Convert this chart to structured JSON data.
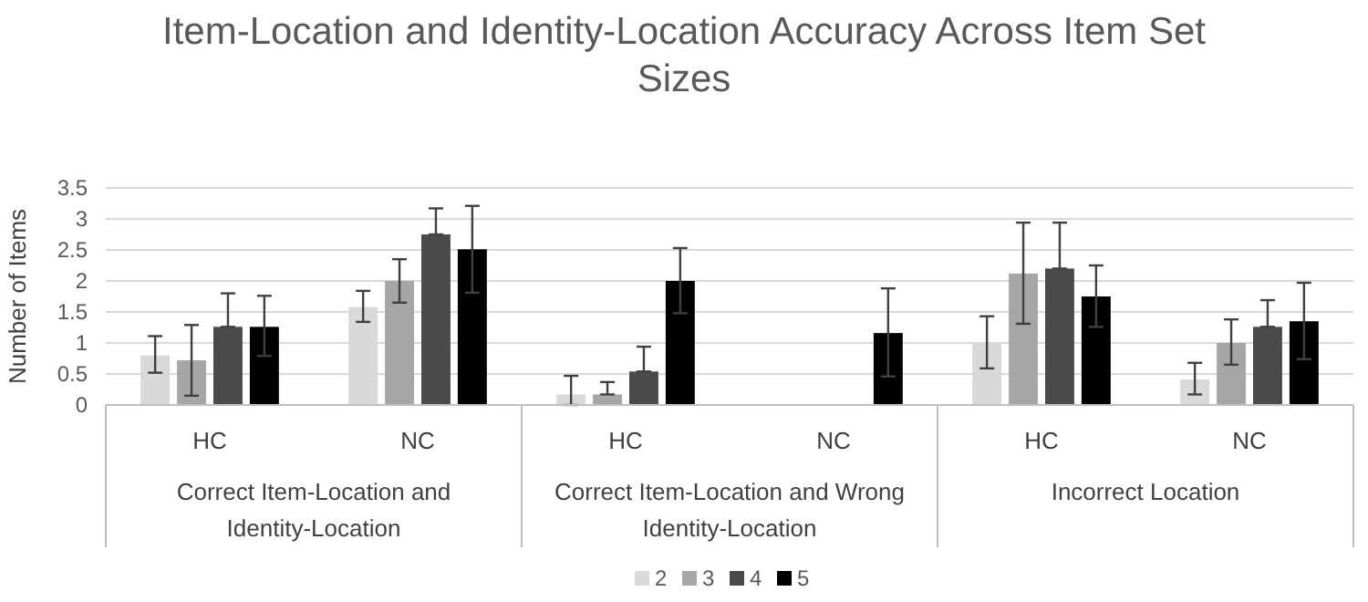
{
  "chart_data": {
    "type": "bar",
    "title": "Item-Location and Identity-Location Accuracy Across Item Set Sizes",
    "ylabel": "Number of Items",
    "categories": [
      "HC",
      "NC",
      "HC",
      "NC",
      "HC",
      "NC"
    ],
    "annotations": [
      "Correct Item-Location and Identity-Location",
      "Correct Item-Location and Wrong Identity-Location",
      "Incorrect Location"
    ],
    "series": [
      {
        "name": "2",
        "color": "#d9d9d9",
        "values": [
          0.8,
          1.58,
          0.17,
          0,
          1.0,
          0.41
        ],
        "errors": [
          [
            0.52,
            1.11
          ],
          [
            1.34,
            1.84
          ],
          [
            0,
            0.47
          ],
          null,
          [
            0.59,
            1.43
          ],
          [
            0.17,
            0.68
          ]
        ]
      },
      {
        "name": "3",
        "color": "#a6a6a6",
        "values": [
          0.72,
          2.0,
          0.17,
          0,
          2.12,
          1.0
        ],
        "errors": [
          [
            0.15,
            1.29
          ],
          [
            1.65,
            2.35
          ],
          [
            0.17,
            0.37
          ],
          null,
          [
            1.31,
            2.94
          ],
          [
            0.65,
            1.38
          ]
        ]
      },
      {
        "name": "4",
        "color": "#4a4a4a",
        "values": [
          1.26,
          2.75,
          0.54,
          0,
          2.2,
          1.26
        ],
        "errors": [
          [
            1.26,
            1.8
          ],
          [
            2.75,
            3.17
          ],
          [
            0.54,
            0.94
          ],
          null,
          [
            2.2,
            2.94
          ],
          [
            1.26,
            1.69
          ]
        ]
      },
      {
        "name": "5",
        "color": "#000000",
        "values": [
          1.26,
          2.51,
          2.0,
          1.16,
          1.75,
          1.35
        ],
        "errors": [
          [
            0.79,
            1.76
          ],
          [
            1.81,
            3.21
          ],
          [
            1.48,
            2.53
          ],
          [
            0.46,
            1.88
          ],
          [
            1.26,
            2.25
          ],
          [
            0.74,
            1.97
          ]
        ]
      }
    ],
    "ylim": [
      0,
      3.5
    ],
    "yticks": [
      0,
      0.5,
      1,
      1.5,
      2,
      2.5,
      3,
      3.5
    ],
    "grid": "y",
    "legend": "bottom"
  }
}
